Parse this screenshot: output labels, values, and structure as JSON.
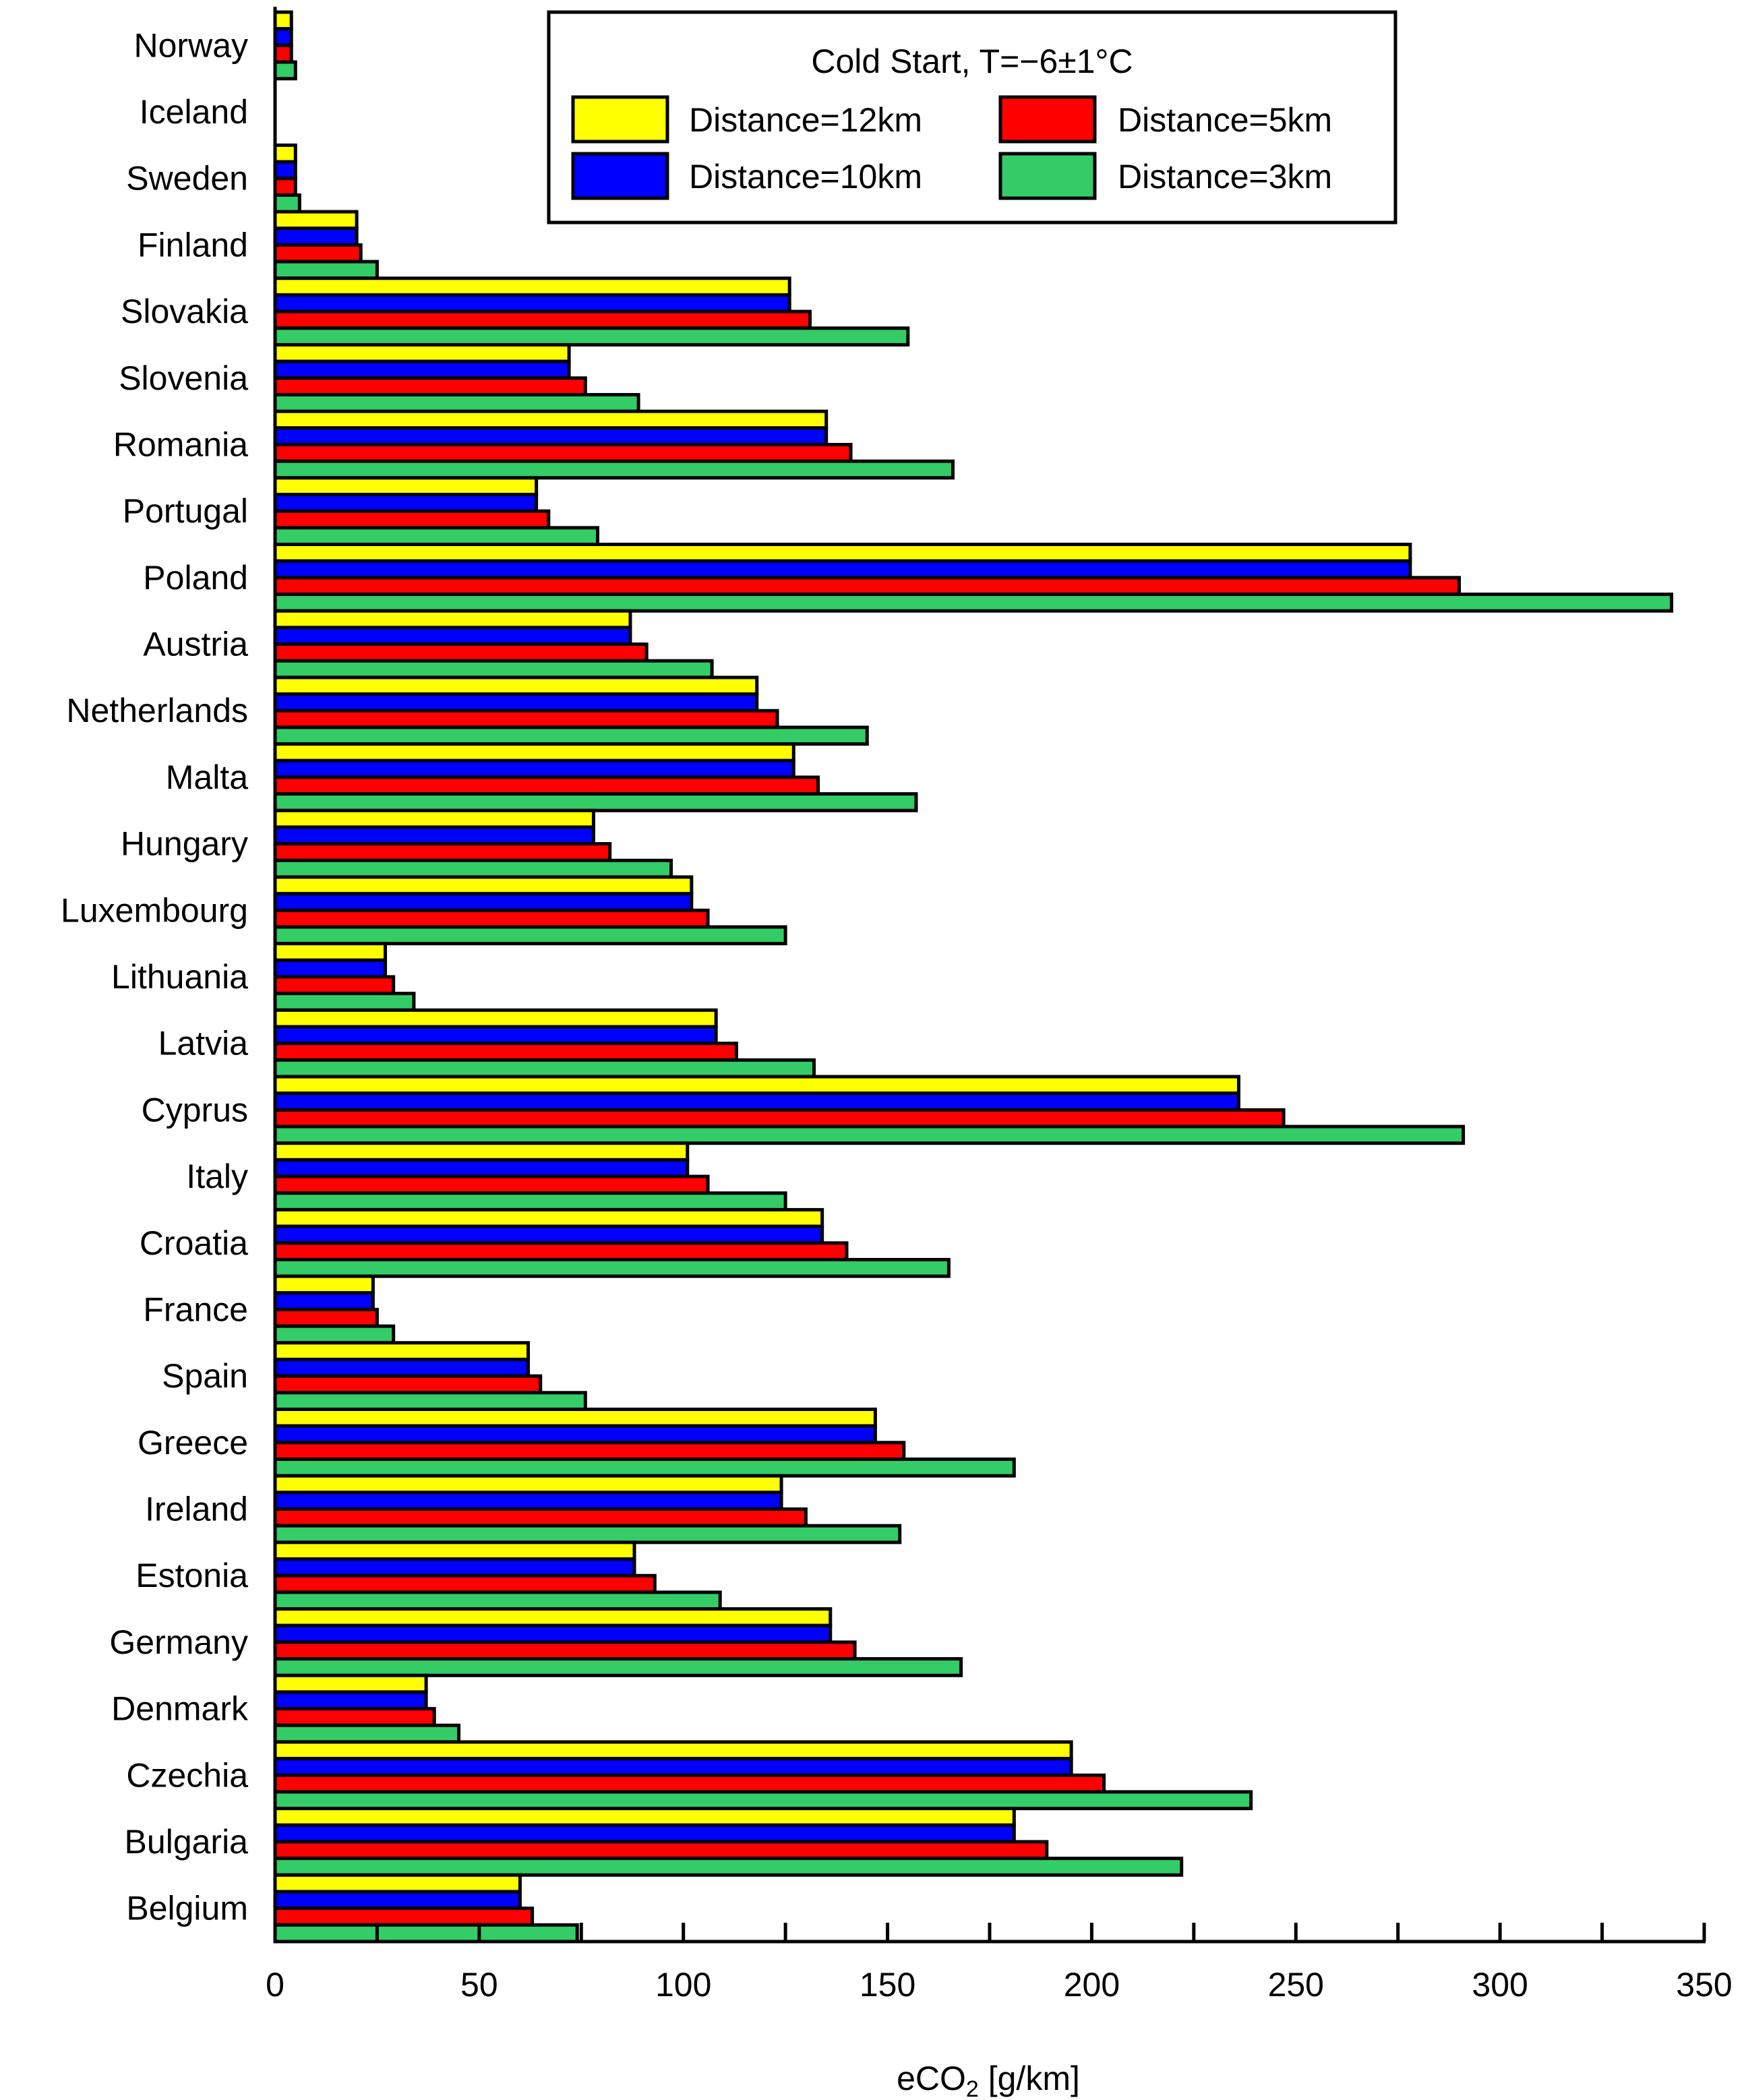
{
  "chart_data": {
    "type": "bar",
    "orientation": "horizontal",
    "categories": [
      "Norway",
      "Iceland",
      "Sweden",
      "Finland",
      "Slovakia",
      "Slovenia",
      "Romania",
      "Portugal",
      "Poland",
      "Austria",
      "Netherlands",
      "Malta",
      "Hungary",
      "Luxembourg",
      "Lithuania",
      "Latvia",
      "Cyprus",
      "Italy",
      "Croatia",
      "France",
      "Spain",
      "Greece",
      "Ireland",
      "Estonia",
      "Germany",
      "Denmark",
      "Czechia",
      "Bulgaria",
      "Belgium"
    ],
    "series": [
      {
        "name": "Distance=12km",
        "color": "#ffff00",
        "values": [
          4,
          0,
          5,
          20,
          126,
          72,
          135,
          64,
          278,
          87,
          118,
          127,
          78,
          102,
          27,
          108,
          236,
          101,
          134,
          24,
          62,
          147,
          124,
          88,
          136,
          37,
          195,
          181,
          60
        ]
      },
      {
        "name": "Distance=10km",
        "color": "#0000ff",
        "values": [
          4,
          0,
          5,
          20,
          126,
          72,
          135,
          64,
          278,
          87,
          118,
          127,
          78,
          102,
          27,
          108,
          236,
          101,
          134,
          24,
          62,
          147,
          124,
          88,
          136,
          37,
          195,
          181,
          60
        ]
      },
      {
        "name": "Distance=5km",
        "color": "#ff0000",
        "values": [
          4,
          0,
          5,
          21,
          131,
          76,
          141,
          67,
          290,
          91,
          123,
          133,
          82,
          106,
          29,
          113,
          247,
          106,
          140,
          25,
          65,
          154,
          130,
          93,
          142,
          39,
          203,
          189,
          63
        ]
      },
      {
        "name": "Distance=3km",
        "color": "#33cc66",
        "values": [
          5,
          0,
          6,
          25,
          155,
          89,
          166,
          79,
          342,
          107,
          145,
          157,
          97,
          125,
          34,
          132,
          291,
          125,
          165,
          29,
          76,
          181,
          153,
          109,
          168,
          45,
          239,
          222,
          74
        ]
      }
    ],
    "legend_title": "Cold Start, T=−6±1°C",
    "legend_placement": "top-right",
    "xlabel_main": "eCO",
    "xlabel_sub": "2",
    "xlabel_rest": " [g/km]",
    "xlim": [
      0,
      350
    ],
    "xticks": [
      0,
      50,
      100,
      150,
      200,
      250,
      300,
      350
    ],
    "xtick_labels": [
      "0",
      "50",
      "100",
      "150",
      "200",
      "250",
      "300",
      "350"
    ],
    "grid": false
  }
}
